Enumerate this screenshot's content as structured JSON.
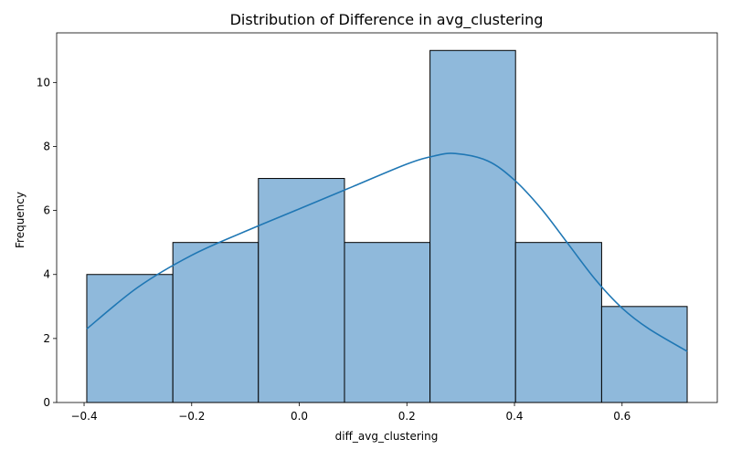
{
  "chart_data": {
    "type": "bar",
    "title": "Distribution of Difference in avg_clustering",
    "xlabel": "diff_avg_clustering",
    "ylabel": "Frequency",
    "bins": [
      {
        "x0": -0.395,
        "x1": -0.235,
        "count": 4
      },
      {
        "x0": -0.235,
        "x1": -0.076,
        "count": 5
      },
      {
        "x0": -0.076,
        "x1": 0.084,
        "count": 7
      },
      {
        "x0": 0.084,
        "x1": 0.243,
        "count": 5
      },
      {
        "x0": 0.243,
        "x1": 0.402,
        "count": 11
      },
      {
        "x0": 0.402,
        "x1": 0.562,
        "count": 5
      },
      {
        "x0": 0.562,
        "x1": 0.721,
        "count": 3
      }
    ],
    "kde": {
      "x": [
        -0.395,
        -0.3,
        -0.2,
        -0.1,
        0.0,
        0.1,
        0.2,
        0.25,
        0.29,
        0.35,
        0.4,
        0.45,
        0.5,
        0.55,
        0.6,
        0.65,
        0.721
      ],
      "y": [
        2.3,
        3.6,
        4.6,
        5.35,
        6.05,
        6.75,
        7.45,
        7.7,
        7.78,
        7.55,
        6.95,
        6.05,
        4.95,
        3.85,
        2.95,
        2.3,
        1.6
      ]
    },
    "xlim": [
      -0.451,
      0.777
    ],
    "ylim": [
      0,
      11.55
    ],
    "xticks": [
      {
        "value": -0.4,
        "label": "−0.4"
      },
      {
        "value": -0.2,
        "label": "−0.2"
      },
      {
        "value": 0.0,
        "label": "0.0"
      },
      {
        "value": 0.2,
        "label": "0.2"
      },
      {
        "value": 0.4,
        "label": "0.4"
      },
      {
        "value": 0.6,
        "label": "0.6"
      }
    ],
    "yticks": [
      {
        "value": 0,
        "label": "0"
      },
      {
        "value": 2,
        "label": "2"
      },
      {
        "value": 4,
        "label": "4"
      },
      {
        "value": 6,
        "label": "6"
      },
      {
        "value": 8,
        "label": "8"
      },
      {
        "value": 10,
        "label": "10"
      }
    ],
    "grid": false,
    "legend": "none",
    "colors": {
      "bar_fill": "#8fb9db",
      "bar_edge": "#000000",
      "kde_line": "#1f77b4"
    }
  }
}
